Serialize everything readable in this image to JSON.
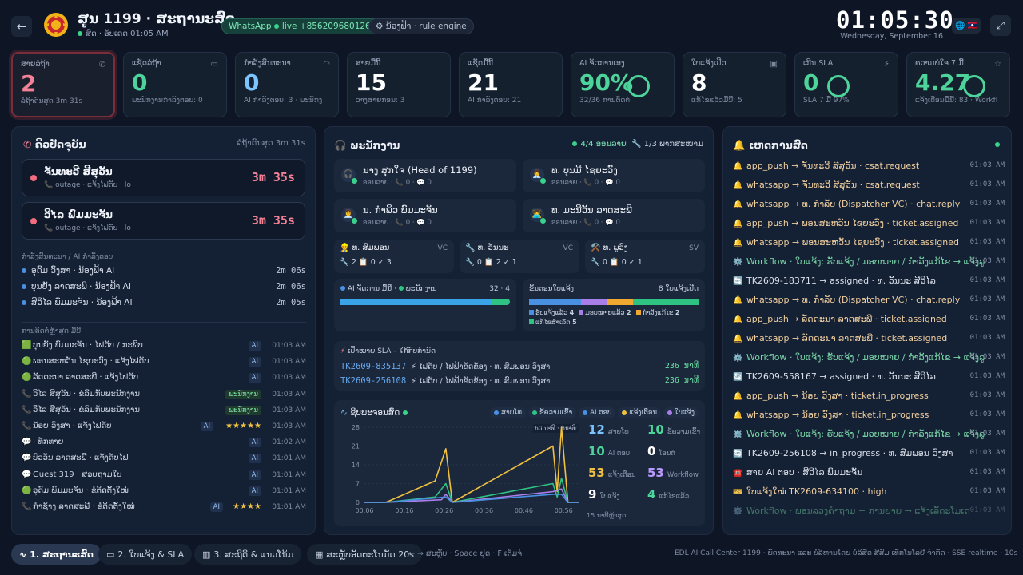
{
  "header": {
    "title": "ສູນ 1199 · ສະຖານະສົດ",
    "subtitle": "ສົດ · ອັບເດດ 01:05 AM",
    "whatsapp_label": "WhatsApp",
    "whatsapp_status": "live +8562096801260",
    "bot_label": "ນ້ອງຟ້າ · rule engine",
    "clock": "01:05:30",
    "date": "Wednesday, September 16",
    "lang": "🌐 🇱🇦"
  },
  "kpis": [
    {
      "label": "ສາຍລໍຖ້າ",
      "value": "2",
      "sub": "ລໍຖ້າດົນສຸດ 3m 31s",
      "icon": "phone-icon",
      "color": "#f48296"
    },
    {
      "label": "ແຊັດລໍຖ້າ",
      "value": "0",
      "sub": "ພະນັກງານກຳລັງຕອບ: 0",
      "icon": "chat-icon",
      "color": "#4cd49a"
    },
    {
      "label": "ກຳລັງສົນທະນາ",
      "value": "0",
      "sub": "AI ກຳລັງຕອບ: 3 · ພະນັກງ",
      "icon": "headset-icon",
      "color": "#7cc4ff"
    },
    {
      "label": "ສາຍມື້ນີ້",
      "value": "15",
      "sub": "ວາງສາຍກ່ອນ: 3",
      "icon": "",
      "color": "#ffffff"
    },
    {
      "label": "ແຊັດມື້ນີ້",
      "value": "21",
      "sub": "AI ກຳລັງຕອບ: 21",
      "icon": "",
      "color": "#ffffff"
    },
    {
      "label": "AI ຈັດການເອງ",
      "value": "90%",
      "sub": "32/36 ການຕິດຕໍ່",
      "icon": "",
      "color": "#4cd49a",
      "ring": 0.9
    },
    {
      "label": "ໃບແຈ້ງເປີດ",
      "value": "8",
      "sub": "ແກ້ໄຂແລ້ວມື້ນີ້: 5",
      "icon": "ticket-icon",
      "color": "#ffffff"
    },
    {
      "label": "ເກີນ SLA",
      "value": "0",
      "sub": "SLA 7 ມື້ 97%",
      "icon": "bolt-icon",
      "color": "#4cd49a",
      "ring": 0.97
    },
    {
      "label": "ຄວາມພໍໃຈ 7 ມື້",
      "value": "4.27",
      "sub": "ແຈ້ງເຕືອນມື້ນີ້: 83 · Workfl",
      "icon": "star-icon",
      "color": "#4cd49a",
      "ring": 0.85
    }
  ],
  "queue": {
    "title": "ຄິວປັດຈຸບັນ",
    "longest": "ລໍຖ້າດົນສຸດ 3m 31s",
    "calls": [
      {
        "name": "ຈັນທະວີ ສີສຸວັນ",
        "meta": "📞 outage · ແຈ້ງໄຟດັບ · lo",
        "timer": "3m 35s"
      },
      {
        "name": "ວິໄລ ພົມມະຈັນ",
        "meta": "📞 outage · ແຈ້ງໄຟດັບ · lo",
        "timer": "3m 35s"
      }
    ],
    "ai_heading": "ກຳລັງສົນທະນາ / AI ກຳລັງຕອບ",
    "ai_rows": [
      {
        "name": "ອຸດົມ ວົງສາ · ນ້ອງຟ້າ AI",
        "time": "2m 06s"
      },
      {
        "name": "ບຸນຍັງ ລາດສະພີ · ນ້ອງຟ້າ AI",
        "time": "2m 06s"
      },
      {
        "name": "ສີວິໄລ ພົມມະຈັນ · ນ້ອງຟ້າ AI",
        "time": "2m 05s"
      }
    ],
    "recent_heading": "ການຕິດຕໍ່ຫຼ້າສຸດ ມື້ນີ້",
    "recent": [
      {
        "icon": "🟩",
        "text": "ບຸນຍັງ ພົມມະຈັນ · ໄຟດັບ / ກະພິບ",
        "tag": "AI",
        "time": "01:03 AM"
      },
      {
        "icon": "🟢",
        "text": "ພອນສະຫວັນ ໄຊຍະວົງ · ແຈ້ງໄຟດັບ",
        "tag": "AI",
        "time": "01:03 AM"
      },
      {
        "icon": "🟢",
        "text": "ລັດດະນາ ລາດສະພີ · ແຈ້ງໄຟດັບ",
        "tag": "AI",
        "time": "01:03 AM"
      },
      {
        "icon": "📞",
        "text": "ວິໄລ ສີສຸວັນ · ຂໍລົມກັບພະນັກງານ",
        "tag": "ພະນັກງານ",
        "time": "01:03 AM"
      },
      {
        "icon": "📞",
        "text": "ວິໄລ ສີສຸວັນ · ຂໍລົມກັບພະນັກງານ",
        "tag": "ພະນັກງານ",
        "time": "01:03 AM"
      },
      {
        "icon": "📞",
        "text": "ນ້ອຍ ວົງສາ · ແຈ້ງໄຟດັບ",
        "tag": "AI",
        "stars": "★★★★★",
        "time": "01:03 AM"
      },
      {
        "icon": "💬",
        "text": "· ທັກທາຍ",
        "tag": "AI",
        "time": "01:02 AM"
      },
      {
        "icon": "💬",
        "text": "ບົວວັນ ລາດສະພີ · ແຈ້ງດັບໄຟ",
        "tag": "AI",
        "time": "01:01 AM"
      },
      {
        "icon": "💬",
        "text": "Guest 319 · ສອບຖາມໃບ",
        "tag": "AI",
        "time": "01:01 AM"
      },
      {
        "icon": "🟢",
        "text": "ອຸດົມ ພົມມະຈັນ · ຂໍຕິດຕັ້ງໃໝ່",
        "tag": "AI",
        "time": "01:01 AM"
      },
      {
        "icon": "📞",
        "text": "ກໍາຊ້າງ ລາດສະພີ · ຂໍຕິດຕັ້ງໃໝ່",
        "tag": "AI",
        "stars": "★★★★",
        "time": "01:01 AM"
      }
    ]
  },
  "agents": {
    "title": "ພະນັກງານ",
    "online": "4/4 ອອນລາຍ",
    "busy": "1/3 ພາກສະໜາມ",
    "list": [
      {
        "name": "ນາງ ສຸກໃຈ (Head of 1199)",
        "meta": "ອອນລາຍ · 📞 0 · 💬 0",
        "icon": "🎧"
      },
      {
        "name": "ທ. ບຸນມີ ໄຊຍະວົງ",
        "meta": "ອອນລາຍ · 📞 0 · 💬 0",
        "icon": "👨‍💼"
      },
      {
        "name": "ນ. ກຳພິວ ພົມມະຈັນ",
        "meta": "ອອນລາຍ · 📞 0 · 💬 0",
        "icon": "👩‍💼"
      },
      {
        "name": "ທ. ມະນີວັນ ລາດສະພີ",
        "meta": "ອອນລາຍ · 📞 0 · 💬 0",
        "icon": "👨‍💻"
      }
    ],
    "field": [
      {
        "name": "👷 ທ. ສົມພອນ",
        "role": "VC",
        "stats": "🔧 2  📋 0  ✓ 3"
      },
      {
        "name": "🔧 ທ. ວັນນະ",
        "role": "VC",
        "stats": "🔧 0  📋 2  ✓ 1"
      },
      {
        "name": "⚒️ ທ. ພູວົງ",
        "role": "SV",
        "stats": "🔧 0  📋 0  ✓ 1"
      }
    ],
    "ai_split": {
      "label_ai": "AI ຈັດການ ມື້ນີ້",
      "label_staff": "ພະນັກງານ",
      "value": "32 · 4",
      "ai": 32,
      "staff": 4
    },
    "ticket_stage": {
      "label": "ຂັ້ນຕອນໃບແຈ້ງ",
      "count": "8 ໃບແຈ້ງເປີດ",
      "segments": [
        {
          "name": "ຮັບແຈ້ງແລ້ວ",
          "value": 4,
          "color": "#4a90e2"
        },
        {
          "name": "ມອບໝາຍແລ້ວ",
          "value": 2,
          "color": "#a97ee8"
        },
        {
          "name": "ກຳລັງແກ້ໄຂ",
          "value": 2,
          "color": "#f0a830"
        },
        {
          "name": "ແກ້ໄຂສຳເລັດ",
          "value": 5,
          "color": "#2fc383"
        }
      ]
    },
    "sla": {
      "title": "ເປົ້າໝາຍ SLA – ໃກ້ກົບກຳນົດ",
      "rows": [
        {
          "id": "TK2609-835137",
          "desc": "⚡ ໄຟດັບ / ໄຟຟ້າຂັດຂ້ອງ · ທ. ສົມພອນ ວົງສາ",
          "mins": "236 ນາທີ"
        },
        {
          "id": "TK2609-256108",
          "desc": "⚡ ໄຟດັບ / ໄຟຟ້າຂັດຂ້ອງ · ທ. ສົມພອນ ວົງສາ",
          "mins": "236 ນາທີ"
        }
      ]
    }
  },
  "activity": {
    "title": "ຊີບພະຈອນສົດ",
    "legend": [
      {
        "name": "ສາຍໂທ",
        "color": "#4a90e2"
      },
      {
        "name": "ຂໍ້ຄວາມເຂົ້າ",
        "color": "#2fc383"
      },
      {
        "name": "AI ຕອບ",
        "color": "#4a90e2"
      },
      {
        "name": "ແຈ້ງເຕືອນ",
        "color": "#f0c040"
      },
      {
        "name": "ໃບແຈ້ງ",
        "color": "#a97ee8"
      }
    ],
    "window_label": "60 ນາທີ · ຕໍ່ນາທີ",
    "stats": [
      {
        "value": "12",
        "label": "ສາຍໂທ",
        "color": "#7cc4ff"
      },
      {
        "value": "10",
        "label": "ຂໍ້ຄວາມເຂົ້າ",
        "color": "#4cd49a"
      },
      {
        "value": "10",
        "label": "AI ຕອບ",
        "color": "#4cd49a"
      },
      {
        "value": "0",
        "label": "ໂອນຕໍ່",
        "color": "#ffffff"
      },
      {
        "value": "53",
        "label": "ແຈ້ງເຕືອນ",
        "color": "#f0c040"
      },
      {
        "value": "53",
        "label": "Workflow",
        "color": "#b99bff"
      },
      {
        "value": "9",
        "label": "ໃບແຈ້ງ",
        "color": "#ffffff"
      },
      {
        "value": "4",
        "label": "ແກ້ໄຂແລ້ວ",
        "color": "#4cd49a"
      }
    ],
    "footer": "15 ນາທີຫຼ້າສຸດ"
  },
  "chart_data": {
    "type": "line",
    "x": [
      "00:06",
      "00:16",
      "00:26",
      "00:36",
      "00:46",
      "00:56"
    ],
    "ylim": [
      0,
      28
    ],
    "yticks": [
      0,
      7,
      14,
      21,
      28
    ],
    "series": [
      {
        "name": "ແຈ້ງເຕືອນ",
        "color": "#f0c040",
        "points": [
          [
            0.1,
            0
          ],
          [
            0.33,
            8
          ],
          [
            0.38,
            20
          ],
          [
            0.41,
            0
          ],
          [
            0.88,
            21
          ],
          [
            0.9,
            4
          ],
          [
            0.92,
            28
          ],
          [
            0.95,
            0
          ]
        ]
      },
      {
        "name": "ຂໍ້ຄວາມເຂົ້າ",
        "color": "#2fc383",
        "points": [
          [
            0.1,
            0
          ],
          [
            0.33,
            2
          ],
          [
            0.38,
            7
          ],
          [
            0.41,
            0
          ],
          [
            0.88,
            7
          ],
          [
            0.9,
            2
          ],
          [
            0.92,
            9
          ],
          [
            0.95,
            0
          ]
        ]
      },
      {
        "name": "ໃບແຈ້ງ",
        "color": "#a97ee8",
        "points": [
          [
            0.1,
            0
          ],
          [
            0.36,
            1
          ],
          [
            0.38,
            3
          ],
          [
            0.41,
            0
          ],
          [
            0.88,
            4
          ],
          [
            0.92,
            5
          ],
          [
            0.95,
            0
          ]
        ]
      },
      {
        "name": "ສາຍໂທ",
        "color": "#4a90e2",
        "points": [
          [
            0.1,
            0
          ],
          [
            0.38,
            2
          ],
          [
            0.41,
            0
          ],
          [
            0.88,
            3
          ],
          [
            0.92,
            3
          ],
          [
            0.95,
            0
          ]
        ]
      }
    ]
  },
  "feed": {
    "title": "ເຫດການສົດ",
    "events": [
      {
        "type": "al",
        "icon": "🔔",
        "text": "app_push → ຈັນທະວີ ສີສຸວັນ · csat.request",
        "time": "01:03 AM"
      },
      {
        "type": "al",
        "icon": "🔔",
        "text": "whatsapp → ຈັນທະວີ ສີສຸວັນ · csat.request",
        "time": "01:03 AM"
      },
      {
        "type": "al",
        "icon": "🔔",
        "text": "whatsapp → ທ. ກຳລັບ (Dispatcher VC) · chat.reply",
        "time": "01:03 AM"
      },
      {
        "type": "al",
        "icon": "🔔",
        "text": "app_push → ພອນສະຫວັນ ໄຊຍະວົງ · ticket.assigned",
        "time": "01:03 AM"
      },
      {
        "type": "al",
        "icon": "🔔",
        "text": "whatsapp → ພອນສະຫວັນ ໄຊຍະວົງ · ticket.assigned",
        "time": "01:03 AM"
      },
      {
        "type": "wf",
        "icon": "⚙️",
        "text": "Workflow · ໃບແຈ້ງ: ຮັບແຈ້ງ / ມອບໝາຍ / ກຳລັງແກ້ໄຂ → ແຈ້ງລູ",
        "time": "01:03 AM"
      },
      {
        "type": "tk",
        "icon": "🔄",
        "text": "TK2609-183711 → assigned · ທ. ວັນນະ ສີວິໄລ",
        "time": "01:03 AM"
      },
      {
        "type": "al",
        "icon": "🔔",
        "text": "whatsapp → ທ. ກຳລັບ (Dispatcher VC) · chat.reply",
        "time": "01:03 AM"
      },
      {
        "type": "al",
        "icon": "🔔",
        "text": "app_push → ລັດດະນາ ລາດສະພີ · ticket.assigned",
        "time": "01:03 AM"
      },
      {
        "type": "al",
        "icon": "🔔",
        "text": "whatsapp → ລັດດະນາ ລາດສະພີ · ticket.assigned",
        "time": "01:03 AM"
      },
      {
        "type": "wf",
        "icon": "⚙️",
        "text": "Workflow · ໃບແຈ້ງ: ຮັບແຈ້ງ / ມອບໝາຍ / ກຳລັງແກ້ໄຂ → ແຈ້ງລູ",
        "time": "01:03 AM"
      },
      {
        "type": "tk",
        "icon": "🔄",
        "text": "TK2609-558167 → assigned · ທ. ວັນນະ ສີວິໄລ",
        "time": "01:03 AM"
      },
      {
        "type": "al",
        "icon": "🔔",
        "text": "app_push → ນ້ອຍ ວົງສາ · ticket.in_progress",
        "time": "01:03 AM"
      },
      {
        "type": "al",
        "icon": "🔔",
        "text": "whatsapp → ນ້ອຍ ວົງສາ · ticket.in_progress",
        "time": "01:03 AM"
      },
      {
        "type": "wf",
        "icon": "⚙️",
        "text": "Workflow · ໃບແຈ້ງ: ຮັບແຈ້ງ / ມອບໝາຍ / ກຳລັງແກ້ໄຂ → ແຈ້ງລູ",
        "time": "01:03 AM"
      },
      {
        "type": "tk",
        "icon": "🔄",
        "text": "TK2609-256108 → in_progress · ທ. ສົມພອນ ວົງສາ",
        "time": "01:03 AM"
      },
      {
        "type": "tk",
        "icon": "☎️",
        "text": "ສາຍ AI ຕອບ · ສີວິໄລ ພົມມະຈັນ",
        "time": "01:03 AM"
      },
      {
        "type": "al",
        "icon": "🎫",
        "text": "ໃບແຈ້ງໃໝ່ TK2609-634100 · high",
        "time": "01:03 AM"
      },
      {
        "type": "wf",
        "icon": "⚙️",
        "text": "Workflow · ພອນລວງຄຳຖາມ + ການຍາຍ → ແຈ້ງເລັດະໂມເດ",
        "time": "01:03 AM"
      }
    ]
  },
  "nav": {
    "tabs": [
      {
        "label": "1. ສະຖານະສົດ",
        "icon": "∿"
      },
      {
        "label": "2. ໃບແຈ້ງ & SLA",
        "icon": "▭"
      },
      {
        "label": "3. ສະຖິຕິ & ແນວໂນ້ມ",
        "icon": "▥"
      },
      {
        "label": "ສະຫຼັບອັດຕະໂນມັດ 20s",
        "icon": "▦"
      }
    ],
    "hint": "← → ສະຫຼັບ · Space ຢຸດ · F ເຕັມຈໍ",
    "footer": "EDL AI Call Center 1199 · ພັດທະນາ ແລະ ບໍລິຫານໂດຍ ບໍລິສັດ ສີສົມ ເທັກໂນໂລຢີ ຈຳກັດ · SSE realtime · 10s"
  }
}
